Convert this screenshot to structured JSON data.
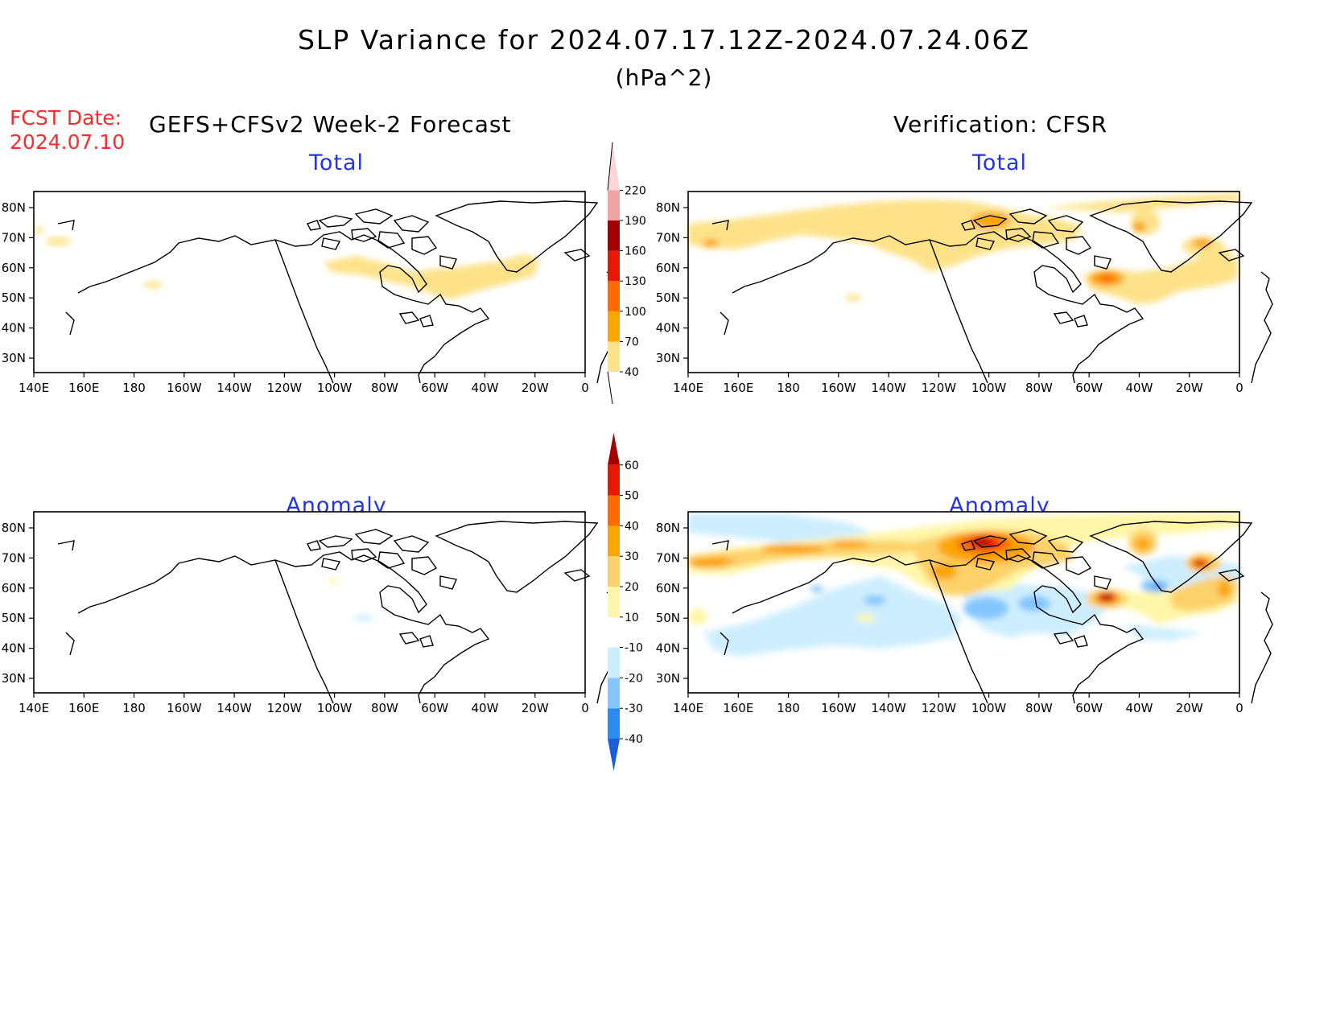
{
  "header": {
    "title": "SLP Variance for 2024.07.17.12Z-2024.07.24.06Z",
    "units": "(hPa^2)",
    "fcst_label": "FCST Date:",
    "fcst_date": "2024.07.10",
    "left_header": "GEFS+CFSv2 Week-2 Forecast",
    "right_header": "Verification: CFSR"
  },
  "panels": {
    "forecast_total": {
      "title": "Total"
    },
    "verification_total": {
      "title": "Total"
    },
    "forecast_anomaly": {
      "title": "Anomaly"
    },
    "verification_anomaly": {
      "title": "Anomaly"
    }
  },
  "map_axes": {
    "lon_labels": [
      "140E",
      "160E",
      "180",
      "160W",
      "140W",
      "120W",
      "100W",
      "80W",
      "60W",
      "40W",
      "20W",
      "0"
    ],
    "lat_labels": [
      "80N",
      "70N",
      "60N",
      "50N",
      "40N",
      "30N"
    ]
  },
  "colorbars": {
    "total": {
      "levels": [
        "40",
        "70",
        "100",
        "130",
        "160",
        "190",
        "220"
      ],
      "colors": [
        "#fde289",
        "#fca400",
        "#fd6a00",
        "#e81900",
        "#a50000",
        "#f2a2a2",
        "#fcd6d6"
      ]
    },
    "anomaly": {
      "levels": [
        "-40",
        "-30",
        "-20",
        "-10",
        "10",
        "20",
        "30",
        "40",
        "50",
        "60"
      ],
      "colors": [
        "#1b5ed8",
        "#2b8cf0",
        "#84c6ff",
        "#cdeeff",
        "#ffffff",
        "#fff6a8",
        "#fdd169",
        "#fca400",
        "#fd6a00",
        "#e81900",
        "#a50000"
      ]
    }
  },
  "colors": {
    "title_blue": "#2233ee",
    "fcst_red": "#ff2a2a"
  }
}
